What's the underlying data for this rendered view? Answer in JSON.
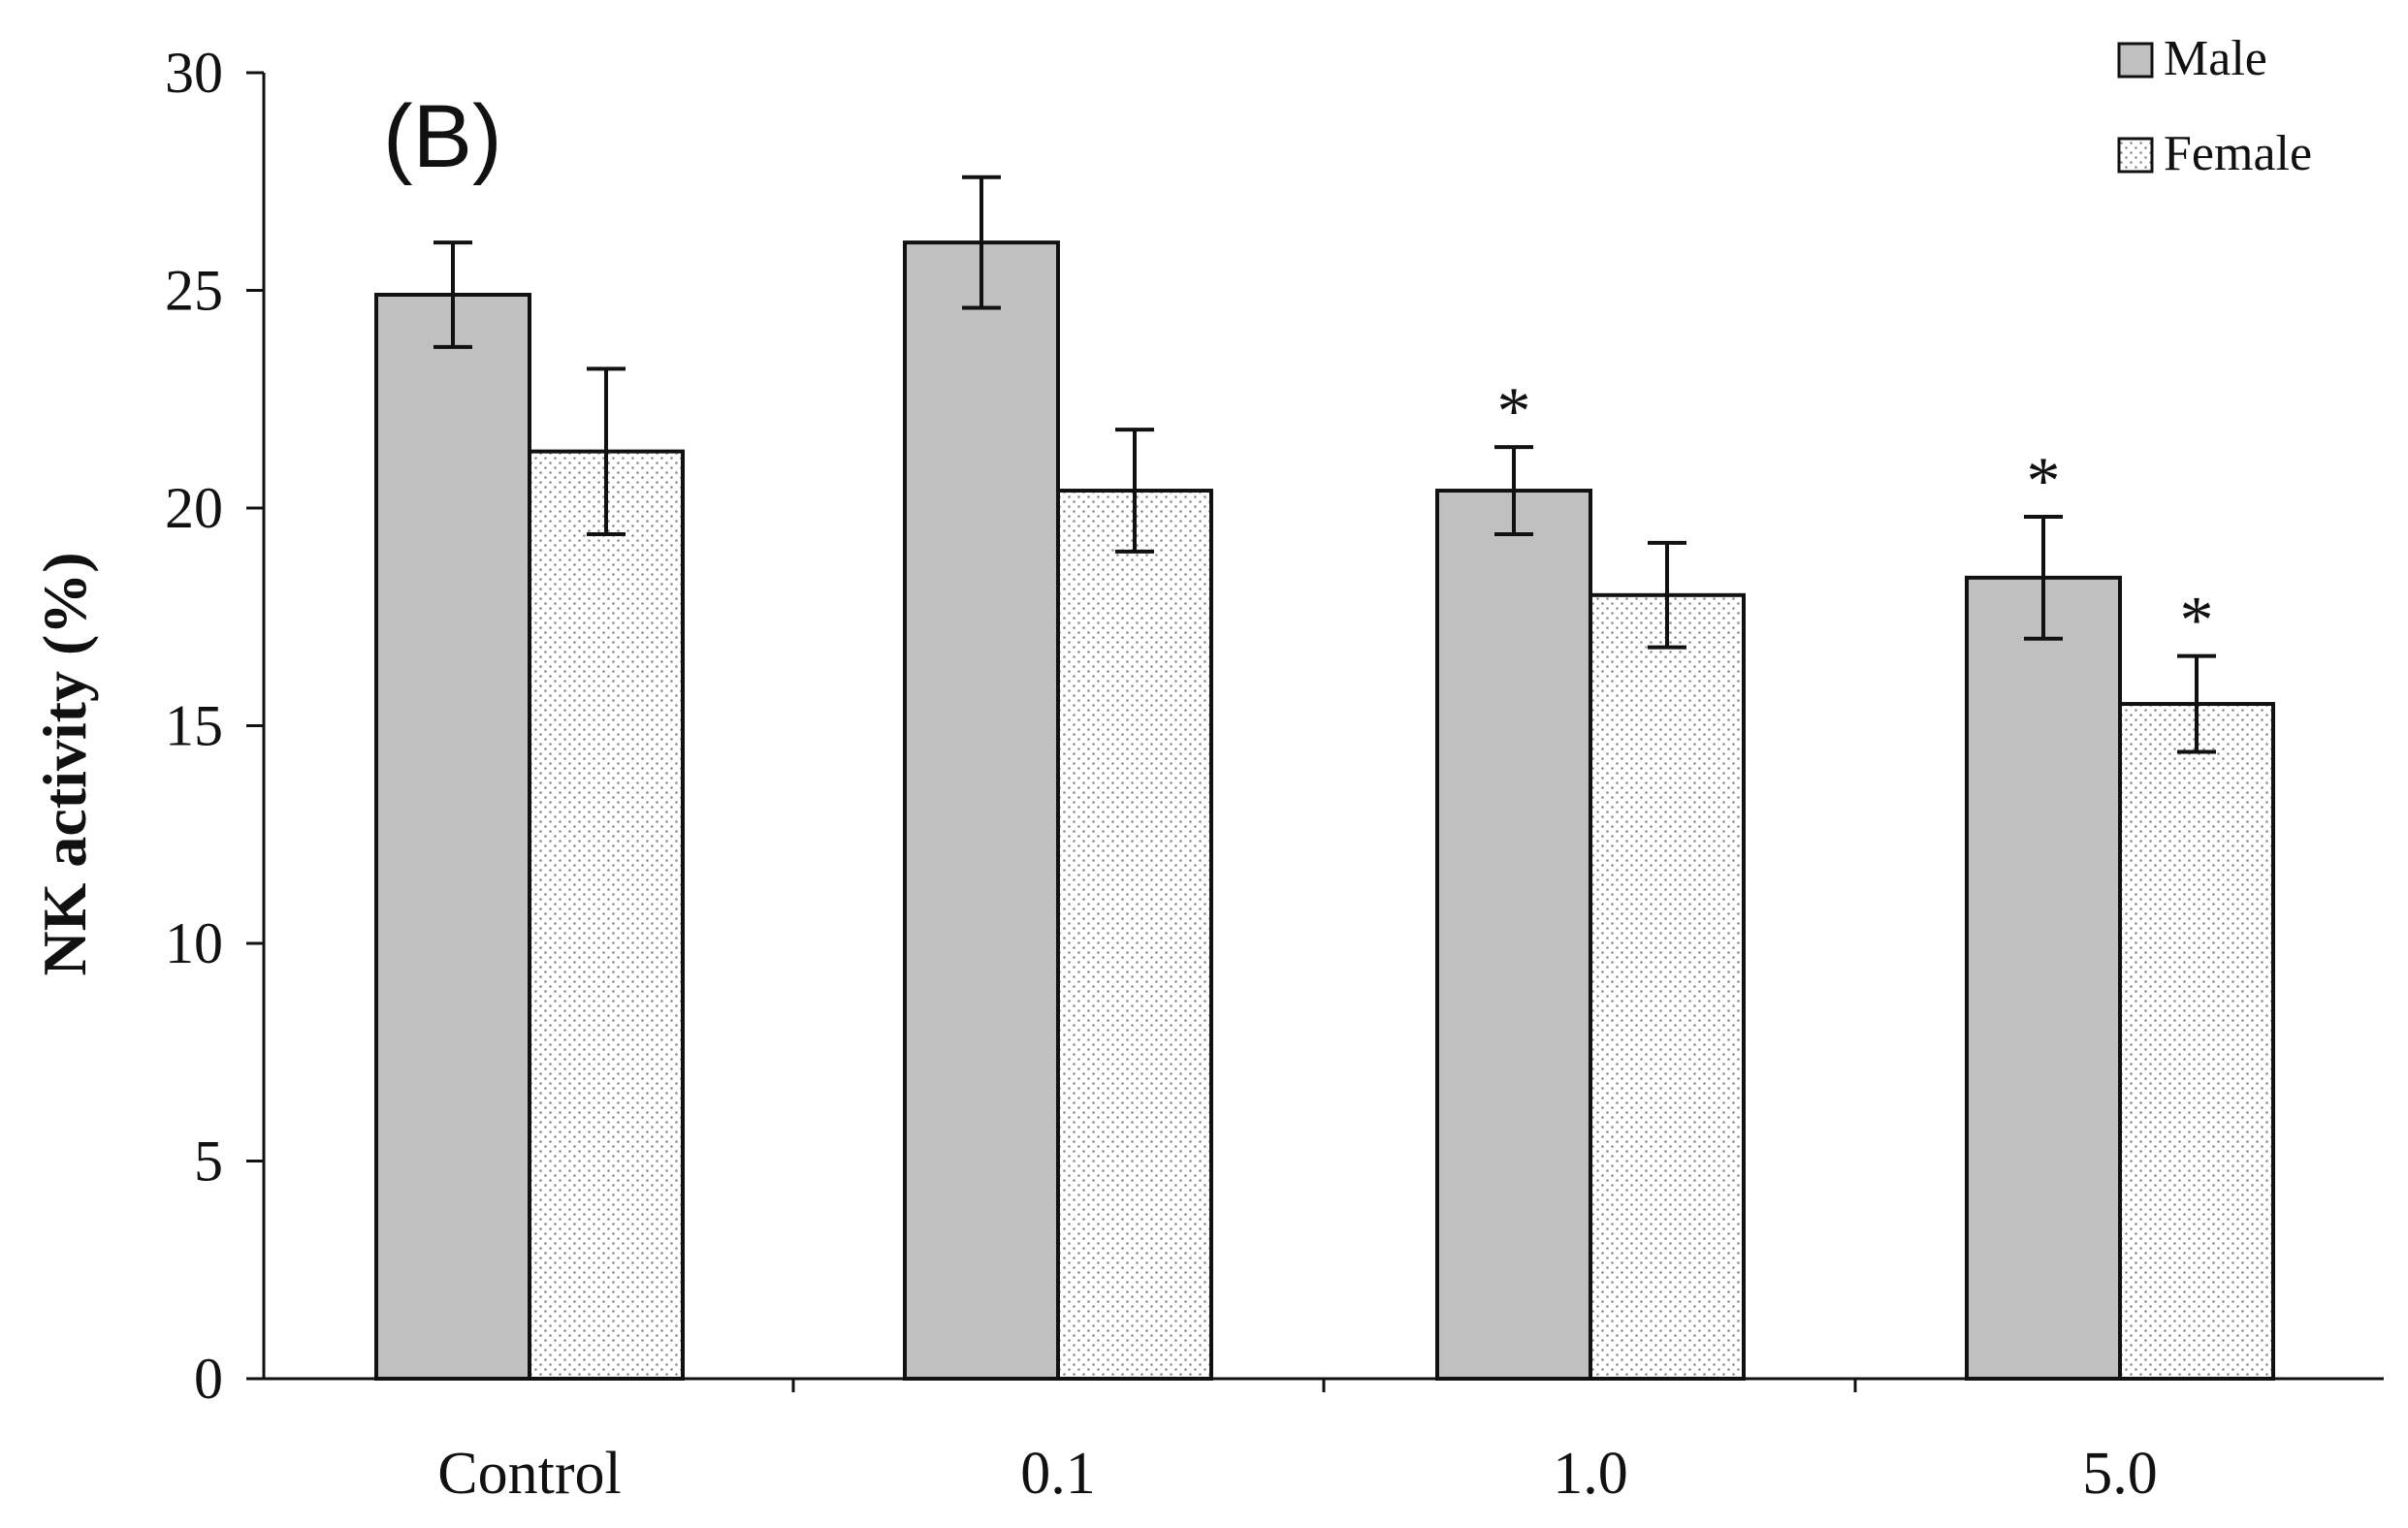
{
  "chart_data": {
    "type": "bar",
    "panel_label": "(B)",
    "ylabel": "NK activity (%)",
    "xlabel": "",
    "ylim": [
      0,
      30
    ],
    "yticks": [
      0,
      5,
      10,
      15,
      20,
      25,
      30
    ],
    "categories": [
      "Control",
      "0.1",
      "1.0",
      "5.0"
    ],
    "series": [
      {
        "name": "Male",
        "values": [
          24.9,
          26.1,
          20.4,
          18.4
        ],
        "errors": [
          1.2,
          1.5,
          1.0,
          1.4
        ],
        "significant": [
          false,
          false,
          true,
          true
        ],
        "fill": "#c0c0c0",
        "pattern": "solid"
      },
      {
        "name": "Female",
        "values": [
          21.3,
          20.4,
          18.0,
          15.5
        ],
        "errors": [
          1.9,
          1.4,
          1.2,
          1.1
        ],
        "significant": [
          false,
          false,
          false,
          true
        ],
        "fill": "#ffffff",
        "pattern": "dotted"
      }
    ],
    "significance_marker": "*",
    "legend_position": "top-right",
    "grid": false
  }
}
